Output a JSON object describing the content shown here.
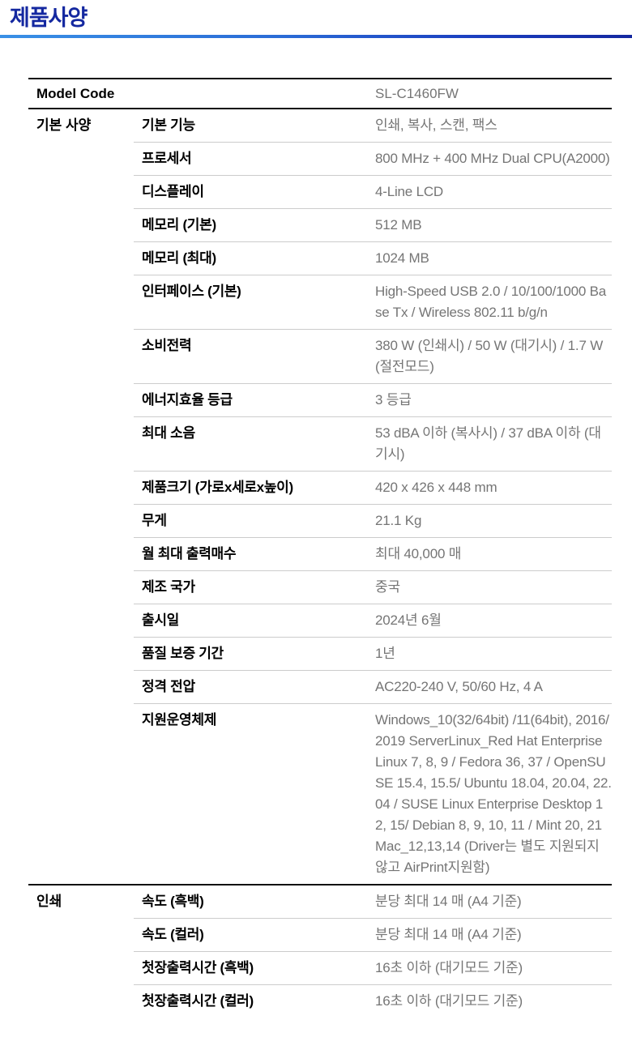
{
  "page": {
    "title": "제품사양"
  },
  "colors": {
    "title_text": "#1428a0",
    "accent_line_start": "#3990e6",
    "accent_line_end": "#1428a0",
    "label_text": "#000000",
    "value_text": "#757575",
    "divider_heavy": "#111111",
    "divider_light": "#cccccc"
  },
  "table": {
    "model_row": {
      "label": "Model Code",
      "value": "SL-C1460FW"
    },
    "sections": [
      {
        "name": "기본 사양",
        "rows": [
          {
            "label": "기본 기능",
            "value": "인쇄, 복사, 스캔, 팩스"
          },
          {
            "label": "프로세서",
            "value": "800 MHz + 400 MHz Dual CPU(A2000)"
          },
          {
            "label": "디스플레이",
            "value": "4-Line LCD"
          },
          {
            "label": "메모리 (기본)",
            "value": "512 MB"
          },
          {
            "label": "메모리 (최대)",
            "value": "1024 MB"
          },
          {
            "label": "인터페이스 (기본)",
            "value": "High-Speed USB 2.0 / 10/100/1000 Base Tx / Wireless 802.11 b/g/n"
          },
          {
            "label": "소비전력",
            "value": "380 W (인쇄시) / 50 W (대기시) / 1.7 W (절전모드)"
          },
          {
            "label": "에너지효율 등급",
            "value": "3 등급"
          },
          {
            "label": "최대 소음",
            "value": "53 dBA 이하 (복사시) / 37 dBA 이하 (대기시)"
          },
          {
            "label": "제품크기 (가로x세로x높이)",
            "value": "420 x 426 x 448 mm"
          },
          {
            "label": "무게",
            "value": "21.1 Kg"
          },
          {
            "label": "월 최대 출력매수",
            "value": "최대 40,000 매"
          },
          {
            "label": "제조 국가",
            "value": "중국"
          },
          {
            "label": "출시일",
            "value": "2024년 6월"
          },
          {
            "label": "품질 보증 기간",
            "value": "1년"
          },
          {
            "label": "정격 전압",
            "value": "AC220-240 V, 50/60 Hz, 4 A"
          },
          {
            "label": "지원운영체제",
            "value": "Windows_10(32/64bit) /11(64bit), 2016/ 2019 ServerLinux_Red Hat Enterprise Linux 7, 8, 9 / Fedora 36, 37 / OpenSUSE 15.4, 15.5/ Ubuntu 18.04, 20.04, 22.04 / SUSE Linux Enterprise Desktop 12, 15/ Debian 8, 9, 10, 11 / Mint 20, 21Mac_12,13,14 (Driver는 별도 지원되지 않고 AirPrint지원함)"
          }
        ]
      },
      {
        "name": "인쇄",
        "rows": [
          {
            "label": "속도 (흑백)",
            "value": "분당 최대 14 매 (A4 기준)"
          },
          {
            "label": "속도 (컬러)",
            "value": "분당 최대 14 매 (A4 기준)"
          },
          {
            "label": "첫장출력시간 (흑백)",
            "value": "16초 이하 (대기모드 기준)"
          },
          {
            "label": "첫장출력시간 (컬러)",
            "value": "16초 이하 (대기모드 기준)"
          }
        ]
      }
    ]
  }
}
